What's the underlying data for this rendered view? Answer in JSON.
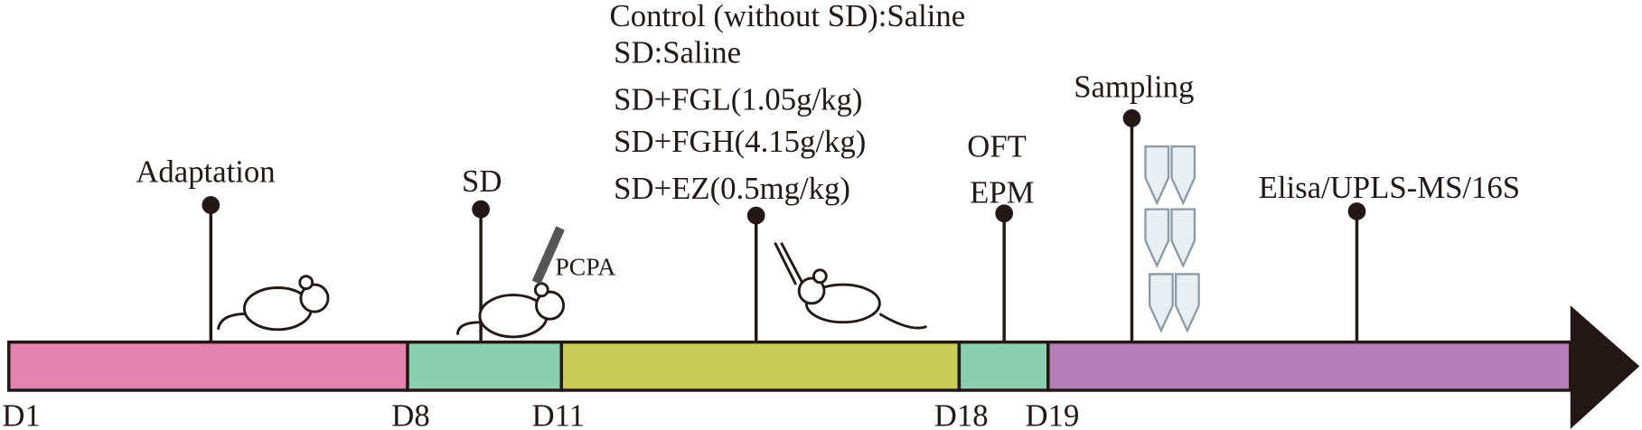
{
  "timeline": {
    "days": [
      "D1",
      "D8",
      "D11",
      "D18",
      "D19"
    ],
    "events": [
      "Adaptation",
      "SD",
      "OFT",
      "EPM",
      "Sampling",
      "Elisa/UPLS-MS/16S"
    ]
  },
  "treatments": [
    "Control (without SD):Saline",
    "SD:Saline",
    "SD+FGL(1.05g/kg)",
    "SD+FGH(4.15g/kg)",
    "SD+EZ(0.5mg/kg)"
  ],
  "drug": "PCPA"
}
